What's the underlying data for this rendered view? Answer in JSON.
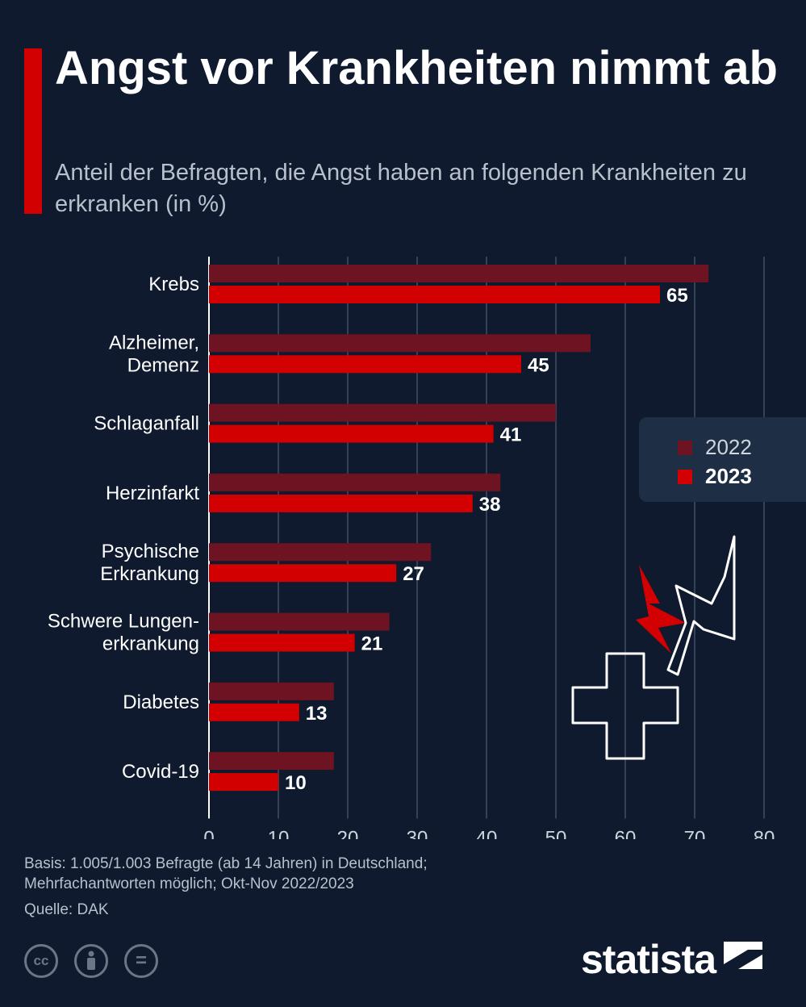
{
  "header": {
    "title": "Angst vor Krankheiten nimmt ab",
    "subtitle": "Anteil der Befragten, die Angst haben an folgenden Krankheiten zu erkranken (in %)"
  },
  "colors": {
    "background": "#0f1a2e",
    "accent": "#d20000",
    "series_2022": "#6e1321",
    "series_2023": "#d20000",
    "grid": "#5a6a80",
    "legend_bg": "#1e2f45"
  },
  "chart_data": {
    "type": "bar",
    "orientation": "horizontal",
    "title": "Angst vor Krankheiten nimmt ab",
    "subtitle": "Anteil der Befragten, die Angst haben an folgenden Krankheiten zu erkranken (in %)",
    "categories": [
      [
        "Krebs"
      ],
      [
        "Alzheimer,",
        "Demenz"
      ],
      [
        "Schlaganfall"
      ],
      [
        "Herzinfarkt"
      ],
      [
        "Psychische",
        "Erkrankung"
      ],
      [
        "Schwere Lungen-",
        "erkrankung"
      ],
      [
        "Diabetes"
      ],
      [
        "Covid-19"
      ]
    ],
    "series": [
      {
        "name": "2022",
        "values": [
          72,
          55,
          50,
          42,
          32,
          26,
          18,
          18
        ]
      },
      {
        "name": "2023",
        "values": [
          65,
          45,
          41,
          38,
          27,
          21,
          13,
          10
        ]
      }
    ],
    "labeled_series": "2023",
    "xlim": [
      0,
      80
    ],
    "xticks": [
      0,
      10,
      20,
      30,
      40,
      50,
      60,
      70,
      80
    ],
    "grid": true,
    "legend_position": "right"
  },
  "legend": {
    "items": [
      "2022",
      "2023"
    ]
  },
  "footer": {
    "note_line1": "Basis: 1.005/1.003 Befragte (ab 14 Jahren) in Deutschland;",
    "note_line2": "Mehrfachantworten möglich; Okt-Nov 2022/2023",
    "source": "Quelle: DAK",
    "cc_label": "cc",
    "equal_label": "=",
    "brand": "statista"
  }
}
